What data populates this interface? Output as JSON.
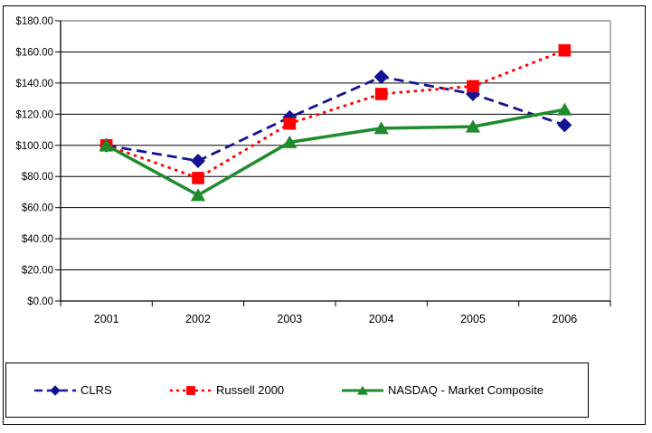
{
  "chart_data": {
    "type": "line",
    "title": "",
    "x_categories": [
      "2001",
      "2002",
      "2003",
      "2004",
      "2005",
      "2006"
    ],
    "series": [
      {
        "name": "CLRS",
        "values": [
          100,
          90,
          118,
          144,
          133,
          113
        ],
        "color": "#131394",
        "line_style": "dashed",
        "marker": "diamond"
      },
      {
        "name": "Russell 2000",
        "values": [
          100,
          79,
          114,
          133,
          138,
          161
        ],
        "color": "#FF0000",
        "line_style": "dotted",
        "marker": "square"
      },
      {
        "name": "NASDAQ - Market Composite",
        "values": [
          100,
          68,
          102,
          111,
          112,
          123
        ],
        "color": "#1E8B2D",
        "line_style": "solid",
        "marker": "triangle"
      }
    ],
    "y_axis": {
      "min": 0,
      "max": 180,
      "step": 20,
      "tick_labels": [
        "$0.00",
        "$20.00",
        "$40.00",
        "$60.00",
        "$80.00",
        "$100.00",
        "$120.00",
        "$140.00",
        "$160.00",
        "$180.00"
      ]
    },
    "ylim": [
      0,
      180
    ],
    "grid": true,
    "grid_color": "#000000",
    "plot_border_color": "#909090",
    "legend_position": "bottom"
  }
}
